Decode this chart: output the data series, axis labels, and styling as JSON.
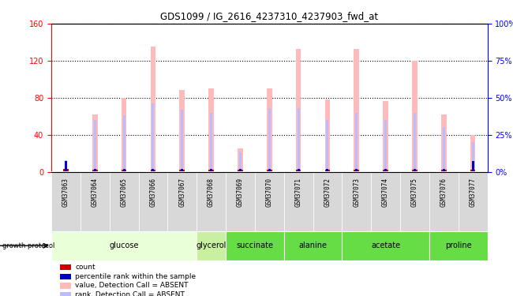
{
  "title": "GDS1099 / IG_2616_4237310_4237903_fwd_at",
  "samples": [
    "GSM37063",
    "GSM37064",
    "GSM37065",
    "GSM37066",
    "GSM37067",
    "GSM37068",
    "GSM37069",
    "GSM37070",
    "GSM37071",
    "GSM37072",
    "GSM37073",
    "GSM37074",
    "GSM37075",
    "GSM37076",
    "GSM37077"
  ],
  "pink_values": [
    3,
    62,
    80,
    135,
    88,
    90,
    25,
    90,
    133,
    78,
    133,
    76,
    120,
    62,
    40
  ],
  "blue_rank_values": [
    8,
    35,
    38,
    46,
    42,
    40,
    13,
    43,
    43,
    35,
    40,
    35,
    40,
    30,
    20
  ],
  "red_count_values": [
    3,
    2,
    2,
    2,
    2,
    2,
    2,
    2,
    2,
    2,
    2,
    2,
    2,
    2,
    2
  ],
  "blue_small_values": [
    7,
    2,
    2,
    2,
    2,
    2,
    2,
    2,
    2,
    2,
    2,
    2,
    2,
    2,
    7
  ],
  "ylim_left": [
    0,
    160
  ],
  "ylim_right": [
    0,
    100
  ],
  "yticks_left": [
    0,
    40,
    80,
    120,
    160
  ],
  "yticks_right": [
    0,
    25,
    50,
    75,
    100
  ],
  "ytick_labels_left": [
    "0",
    "40",
    "80",
    "120",
    "160"
  ],
  "ytick_labels_right": [
    "0%",
    "25%",
    "50%",
    "75%",
    "100%"
  ],
  "pink_color": "#ffbbbb",
  "blue_bar_color": "#bbbbff",
  "red_color": "#cc0000",
  "blue_color": "#0000cc",
  "group_names": [
    "glucose",
    "glycerol",
    "succinate",
    "alanine",
    "acetate",
    "proline"
  ],
  "group_indices": [
    [
      0,
      1,
      2,
      3,
      4
    ],
    [
      5
    ],
    [
      6,
      7
    ],
    [
      8,
      9
    ],
    [
      10,
      11,
      12
    ],
    [
      13,
      14
    ]
  ],
  "group_bg_colors": [
    "#e8ffd8",
    "#c8f0a0",
    "#66dd44",
    "#66dd44",
    "#66dd44",
    "#66dd44"
  ],
  "sample_bg_color": "#d8d8d8",
  "legend_items": [
    {
      "color": "#cc0000",
      "label": "count"
    },
    {
      "color": "#0000cc",
      "label": "percentile rank within the sample"
    },
    {
      "color": "#ffbbbb",
      "label": "value, Detection Call = ABSENT"
    },
    {
      "color": "#bbbbff",
      "label": "rank, Detection Call = ABSENT"
    }
  ]
}
